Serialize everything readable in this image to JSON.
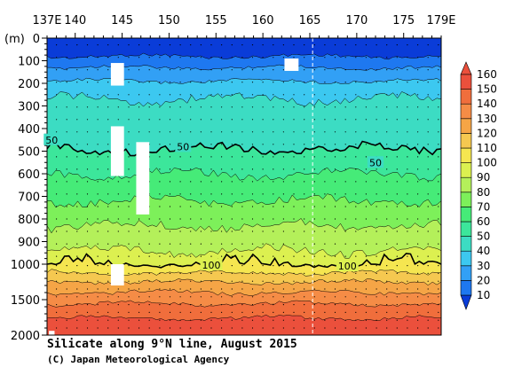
{
  "chart_data": {
    "type": "heatmap",
    "title": "Silicate along 9°N line, August 2015",
    "credit": "(C) Japan Meteorological Agency",
    "ylabel": "(m)",
    "xlim": [
      137,
      179
    ],
    "x_ticks": [
      "137E",
      "140",
      "145",
      "150",
      "155",
      "160",
      "165",
      "170",
      "175",
      "179E"
    ],
    "x_tick_values": [
      137,
      140,
      145,
      150,
      155,
      160,
      165,
      170,
      175,
      179
    ],
    "y_ticks": [
      "0",
      "100",
      "200",
      "300",
      "400",
      "500",
      "600",
      "700",
      "800",
      "900",
      "1000",
      "1500",
      "2000"
    ],
    "y_tick_values": [
      0,
      100,
      200,
      300,
      400,
      500,
      600,
      700,
      800,
      900,
      1000,
      1500,
      2000
    ],
    "ylim": [
      0,
      2000
    ],
    "y_axis_note": "linear 0-1000 m, compressed 1000-2000 m",
    "colorbar": {
      "levels": [
        10,
        20,
        30,
        40,
        50,
        60,
        70,
        80,
        90,
        100,
        110,
        120,
        130,
        140,
        150,
        160
      ],
      "labels": [
        "10",
        "20",
        "30",
        "40",
        "50",
        "60",
        "70",
        "80",
        "90",
        "100",
        "110",
        "120",
        "130",
        "140",
        "150",
        "160"
      ],
      "colors": [
        "#0a3cd8",
        "#1e78f0",
        "#32a0f5",
        "#3cc8f0",
        "#3cdcc3",
        "#3ce69b",
        "#46eb78",
        "#7df05a",
        "#b4f05a",
        "#dcf050",
        "#f5e650",
        "#f5c850",
        "#f5a546",
        "#f58c46",
        "#f06e3c",
        "#eb503c"
      ]
    },
    "depth_contours": [
      {
        "value": 10,
        "depth": 80
      },
      {
        "value": 20,
        "depth": 130
      },
      {
        "value": 30,
        "depth": 190
      },
      {
        "value": 40,
        "depth": 270
      },
      {
        "value": 50,
        "depth": 490
      },
      {
        "value": 60,
        "depth": 600
      },
      {
        "value": 70,
        "depth": 720
      },
      {
        "value": 80,
        "depth": 830
      },
      {
        "value": 90,
        "depth": 940
      },
      {
        "value": 100,
        "depth": 1000
      },
      {
        "value": 110,
        "depth": 1120
      },
      {
        "value": 120,
        "depth": 1250
      },
      {
        "value": 130,
        "depth": 1400
      },
      {
        "value": 140,
        "depth": 1560
      },
      {
        "value": 150,
        "depth": 1760
      },
      {
        "value": 160,
        "depth": 2000
      }
    ],
    "contour_labels": [
      {
        "text": "50",
        "x": 137.5,
        "depth": 450
      },
      {
        "text": "50",
        "x": 151.5,
        "depth": 480
      },
      {
        "text": "50",
        "x": 172.0,
        "depth": 550
      },
      {
        "text": "100",
        "x": 154.5,
        "depth": 1010
      },
      {
        "text": "100",
        "x": 169.0,
        "depth": 1025
      }
    ],
    "missing_regions": [
      {
        "x0": 143.8,
        "x1": 145.2,
        "d0": 110,
        "d1": 210
      },
      {
        "x0": 143.8,
        "x1": 145.2,
        "d0": 390,
        "d1": 610
      },
      {
        "x0": 146.5,
        "x1": 147.9,
        "d0": 460,
        "d1": 780
      },
      {
        "x0": 143.8,
        "x1": 145.2,
        "d0": 1000,
        "d1": 1300
      },
      {
        "x0": 162.3,
        "x1": 163.8,
        "d0": 90,
        "d1": 145
      },
      {
        "x0": 137.2,
        "x1": 137.8,
        "d0": 1940,
        "d1": 2000
      }
    ],
    "dashed_line_x": 165.3,
    "grid": false,
    "legend": "colorbar-right"
  }
}
